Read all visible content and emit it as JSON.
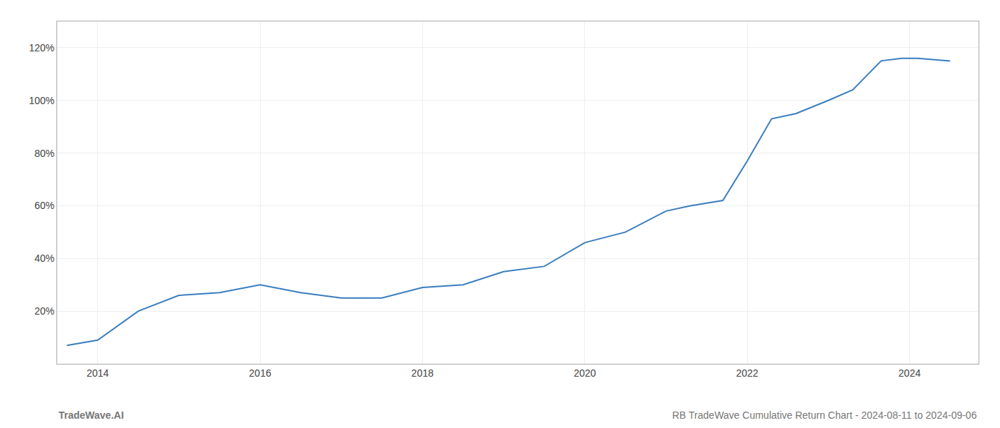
{
  "chart_data": {
    "type": "line",
    "x": [
      2013.62,
      2014.0,
      2014.5,
      2015.0,
      2015.5,
      2016.0,
      2016.5,
      2017.0,
      2017.5,
      2018.0,
      2018.5,
      2019.0,
      2019.5,
      2020.0,
      2020.5,
      2021.0,
      2021.3,
      2021.7,
      2022.0,
      2022.3,
      2022.6,
      2023.0,
      2023.3,
      2023.65,
      2023.9,
      2024.1,
      2024.5
    ],
    "values": [
      7,
      9,
      20,
      26,
      27,
      30,
      27,
      25,
      25,
      29,
      30,
      35,
      37,
      46,
      50,
      58,
      60,
      62,
      77,
      93,
      95,
      100,
      104,
      115,
      116,
      116,
      115
    ],
    "color": "#3a7ebf",
    "xlim": [
      2013.5,
      2024.85
    ],
    "ylim": [
      0,
      130
    ],
    "xticks": [
      2014,
      2016,
      2018,
      2020,
      2022,
      2024
    ],
    "yticks": [
      {
        "value": 20,
        "label": "20%"
      },
      {
        "value": 40,
        "label": "40%"
      },
      {
        "value": 60,
        "label": "60%"
      },
      {
        "value": 80,
        "label": "80%"
      },
      {
        "value": 100,
        "label": "100%"
      },
      {
        "value": 120,
        "label": "120%"
      }
    ],
    "grid": true,
    "annotations": [
      "TradeWave.AI",
      "RB TradeWave Cumulative Return Chart - 2024-08-11 to 2024-09-06"
    ]
  }
}
